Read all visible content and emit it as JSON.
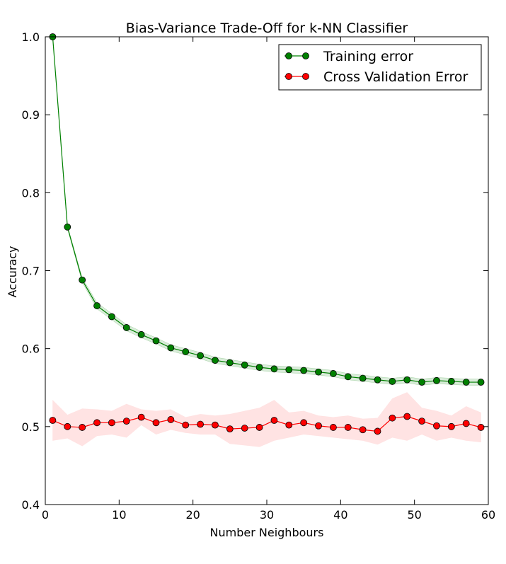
{
  "chart_data": {
    "type": "line",
    "title": "Bias-Variance Trade-Off for k-NN Classifier",
    "xlabel": "Number Neighbours",
    "ylabel": "Accuracy",
    "xlim": [
      0,
      60
    ],
    "ylim": [
      0.4,
      1.0
    ],
    "xticks": [
      0,
      10,
      20,
      30,
      40,
      50,
      60
    ],
    "yticks": [
      0.4,
      0.5,
      0.6,
      0.7,
      0.8,
      0.9,
      1.0
    ],
    "xtick_labels": [
      "0",
      "10",
      "20",
      "30",
      "40",
      "50",
      "60"
    ],
    "ytick_labels": [
      "0.4",
      "0.5",
      "0.6",
      "0.7",
      "0.8",
      "0.9",
      "1.0"
    ],
    "legend_position": "top-right",
    "x": [
      1,
      3,
      5,
      7,
      9,
      11,
      13,
      15,
      17,
      19,
      21,
      23,
      25,
      27,
      29,
      31,
      33,
      35,
      37,
      39,
      41,
      43,
      45,
      47,
      49,
      51,
      53,
      55,
      57,
      59
    ],
    "series": [
      {
        "name": "Training error",
        "color": "#008000",
        "band_color": "#008000",
        "values": [
          1.0,
          0.756,
          0.688,
          0.655,
          0.641,
          0.627,
          0.618,
          0.61,
          0.601,
          0.596,
          0.591,
          0.585,
          0.582,
          0.579,
          0.576,
          0.574,
          0.573,
          0.572,
          0.57,
          0.568,
          0.564,
          0.562,
          0.56,
          0.558,
          0.56,
          0.557,
          0.559,
          0.558,
          0.557,
          0.557
        ],
        "lower": [
          1.0,
          0.754,
          0.685,
          0.651,
          0.637,
          0.623,
          0.614,
          0.606,
          0.597,
          0.592,
          0.587,
          0.581,
          0.578,
          0.575,
          0.572,
          0.57,
          0.569,
          0.568,
          0.566,
          0.564,
          0.56,
          0.558,
          0.556,
          0.554,
          0.556,
          0.553,
          0.555,
          0.554,
          0.553,
          0.553
        ],
        "upper": [
          1.0,
          0.758,
          0.691,
          0.659,
          0.645,
          0.631,
          0.622,
          0.614,
          0.605,
          0.6,
          0.595,
          0.589,
          0.586,
          0.583,
          0.58,
          0.578,
          0.577,
          0.576,
          0.574,
          0.572,
          0.568,
          0.566,
          0.564,
          0.562,
          0.564,
          0.561,
          0.563,
          0.562,
          0.561,
          0.561
        ]
      },
      {
        "name": "Cross Validation Error",
        "color": "#ff0000",
        "band_color": "#ffcccc",
        "values": [
          0.508,
          0.5,
          0.499,
          0.505,
          0.505,
          0.507,
          0.512,
          0.505,
          0.509,
          0.502,
          0.503,
          0.502,
          0.497,
          0.498,
          0.499,
          0.508,
          0.502,
          0.505,
          0.501,
          0.499,
          0.499,
          0.496,
          0.494,
          0.511,
          0.513,
          0.507,
          0.501,
          0.5,
          0.504,
          0.499
        ],
        "lower": [
          0.482,
          0.485,
          0.475,
          0.488,
          0.49,
          0.486,
          0.502,
          0.49,
          0.496,
          0.492,
          0.49,
          0.49,
          0.478,
          0.476,
          0.474,
          0.482,
          0.486,
          0.49,
          0.488,
          0.486,
          0.484,
          0.482,
          0.477,
          0.486,
          0.482,
          0.49,
          0.482,
          0.486,
          0.482,
          0.48
        ],
        "upper": [
          0.534,
          0.515,
          0.523,
          0.522,
          0.52,
          0.529,
          0.522,
          0.52,
          0.522,
          0.512,
          0.516,
          0.514,
          0.516,
          0.52,
          0.524,
          0.534,
          0.518,
          0.52,
          0.514,
          0.512,
          0.514,
          0.51,
          0.511,
          0.536,
          0.544,
          0.524,
          0.52,
          0.514,
          0.526,
          0.518
        ]
      }
    ]
  }
}
